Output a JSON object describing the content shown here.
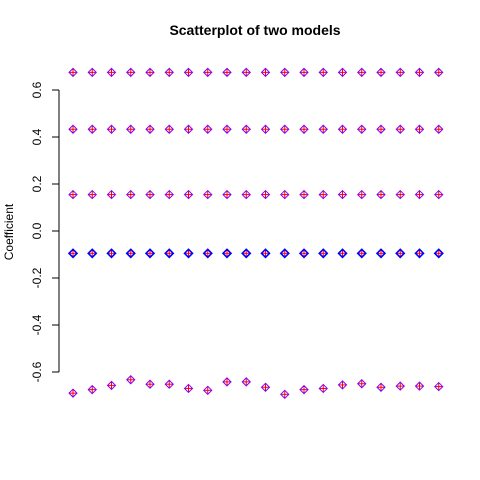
{
  "chart_data": {
    "type": "scatter",
    "title": "Scatterplot of two models",
    "xlabel": "",
    "ylabel": "Coefficient",
    "ylim": [
      -0.7,
      0.7
    ],
    "y_ticks": [
      -0.6,
      -0.4,
      -0.2,
      0.0,
      0.2,
      0.4,
      0.6
    ],
    "y_tick_labels": [
      "-0.6",
      "-0.4",
      "-0.2",
      "0.0",
      "0.2",
      "0.4",
      "0.6"
    ],
    "x_axis_shown": false,
    "grid": false,
    "x": [
      1,
      2,
      3,
      4,
      5,
      6,
      7,
      8,
      9,
      10,
      11,
      12,
      13,
      14,
      15,
      16,
      17,
      18,
      19,
      20
    ],
    "series": [
      {
        "marker": "plus",
        "color": "#FF0000",
        "groups": [
          [
            0.675,
            0.675,
            0.675,
            0.675,
            0.675,
            0.675,
            0.675,
            0.675,
            0.675,
            0.675,
            0.675,
            0.675,
            0.675,
            0.675,
            0.675,
            0.675,
            0.675,
            0.675,
            0.675,
            0.675
          ],
          [
            0.433,
            0.433,
            0.433,
            0.433,
            0.433,
            0.433,
            0.433,
            0.433,
            0.433,
            0.433,
            0.433,
            0.433,
            0.433,
            0.433,
            0.433,
            0.433,
            0.433,
            0.433,
            0.433,
            0.433
          ],
          [
            0.155,
            0.155,
            0.155,
            0.155,
            0.155,
            0.155,
            0.155,
            0.155,
            0.155,
            0.155,
            0.155,
            0.155,
            0.155,
            0.155,
            0.155,
            0.155,
            0.155,
            0.155,
            0.155,
            0.155
          ],
          [
            -0.095,
            -0.095,
            -0.095,
            -0.095,
            -0.095,
            -0.095,
            -0.095,
            -0.095,
            -0.095,
            -0.095,
            -0.095,
            -0.095,
            -0.095,
            -0.095,
            -0.095,
            -0.095,
            -0.095,
            -0.095,
            -0.095,
            -0.095
          ],
          [
            -0.69,
            -0.675,
            -0.657,
            -0.633,
            -0.652,
            -0.652,
            -0.67,
            -0.678,
            -0.642,
            -0.642,
            -0.665,
            -0.695,
            -0.675,
            -0.67,
            -0.655,
            -0.65,
            -0.665,
            -0.66,
            -0.66,
            -0.662
          ]
        ]
      },
      {
        "marker": "diamond",
        "color": "#8000FF",
        "groups": [
          [
            0.675,
            0.675,
            0.675,
            0.675,
            0.675,
            0.675,
            0.675,
            0.675,
            0.675,
            0.675,
            0.675,
            0.675,
            0.675,
            0.675,
            0.675,
            0.675,
            0.675,
            0.675,
            0.675,
            0.675
          ],
          [
            0.433,
            0.433,
            0.433,
            0.433,
            0.433,
            0.433,
            0.433,
            0.433,
            0.433,
            0.433,
            0.433,
            0.433,
            0.433,
            0.433,
            0.433,
            0.433,
            0.433,
            0.433,
            0.433,
            0.433
          ],
          [
            0.155,
            0.155,
            0.155,
            0.155,
            0.155,
            0.155,
            0.155,
            0.155,
            0.155,
            0.155,
            0.155,
            0.155,
            0.155,
            0.155,
            0.155,
            0.155,
            0.155,
            0.155,
            0.155,
            0.155
          ],
          [
            -0.095,
            -0.095,
            -0.095,
            -0.095,
            -0.095,
            -0.095,
            -0.095,
            -0.095,
            -0.095,
            -0.095,
            -0.095,
            -0.095,
            -0.095,
            -0.095,
            -0.095,
            -0.095,
            -0.095,
            -0.095,
            -0.095,
            -0.095
          ],
          [
            -0.69,
            -0.675,
            -0.657,
            -0.633,
            -0.652,
            -0.652,
            -0.67,
            -0.678,
            -0.642,
            -0.642,
            -0.665,
            -0.695,
            -0.675,
            -0.67,
            -0.655,
            -0.65,
            -0.665,
            -0.66,
            -0.66,
            -0.662
          ]
        ]
      }
    ],
    "highlight_color": "#0000FF"
  }
}
